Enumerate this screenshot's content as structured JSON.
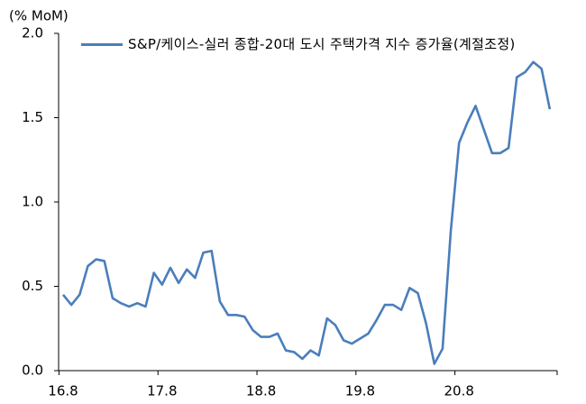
{
  "chart_data": {
    "type": "line",
    "y_axis_label": "(% MoM)",
    "categories": [
      "16.8",
      null,
      null,
      null,
      null,
      null,
      null,
      null,
      null,
      null,
      null,
      null,
      "17.8",
      null,
      null,
      null,
      null,
      null,
      null,
      null,
      null,
      null,
      null,
      null,
      "18.8",
      null,
      null,
      null,
      null,
      null,
      null,
      null,
      null,
      null,
      null,
      null,
      "19.8",
      null,
      null,
      null,
      null,
      null,
      null,
      null,
      null,
      null,
      null,
      null,
      "20.8",
      null,
      null,
      null,
      null,
      null,
      null,
      null,
      null,
      null,
      null,
      null
    ],
    "series": [
      {
        "name": "S&P/케이스-실러 종합-20대 도시 주택가격 지수 증가율(계절조정)",
        "color": "#4a7ebb",
        "values": [
          0.45,
          0.39,
          0.45,
          0.62,
          0.66,
          0.65,
          0.43,
          0.4,
          0.38,
          0.4,
          0.38,
          0.58,
          0.51,
          0.61,
          0.52,
          0.6,
          0.55,
          0.7,
          0.71,
          0.41,
          0.33,
          0.33,
          0.32,
          0.24,
          0.2,
          0.2,
          0.22,
          0.12,
          0.11,
          0.07,
          0.12,
          0.09,
          0.31,
          0.27,
          0.18,
          0.16,
          0.19,
          0.22,
          0.3,
          0.39,
          0.39,
          0.36,
          0.49,
          0.46,
          0.28,
          0.04,
          0.13,
          0.83,
          1.35,
          1.47,
          1.57,
          1.43,
          1.29,
          1.29,
          1.32,
          1.74,
          1.77,
          1.83,
          1.79,
          1.55
        ]
      }
    ],
    "ylim": [
      0,
      2
    ],
    "yticks": [
      {
        "value": 0,
        "label": "0.0"
      },
      0.5,
      {
        "value": 1,
        "label": "1.0"
      },
      1.5,
      {
        "value": 2,
        "label": "2.0"
      }
    ],
    "grid": false
  }
}
